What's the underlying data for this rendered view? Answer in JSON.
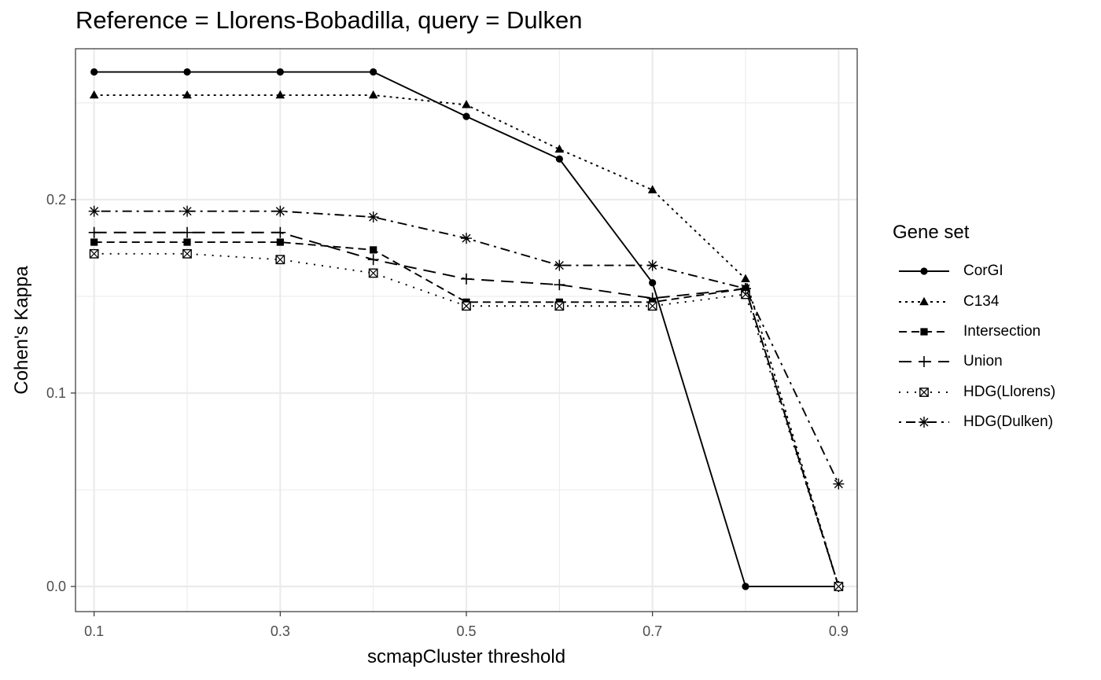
{
  "chart_data": {
    "type": "line",
    "title": "Reference = Llorens-Bobadilla, query = Dulken",
    "xlabel": "scmapCluster threshold",
    "ylabel": "Cohen's Kappa",
    "xlim": [
      0.08,
      0.92
    ],
    "ylim": [
      -0.013,
      0.278
    ],
    "x": [
      0.1,
      0.2,
      0.3,
      0.4,
      0.5,
      0.6,
      0.7,
      0.8,
      0.9
    ],
    "x_ticks": [
      0.1,
      0.3,
      0.5,
      0.7,
      0.9
    ],
    "x_tick_labels": [
      "0.1",
      "0.3",
      "0.5",
      "0.7",
      "0.9"
    ],
    "y_ticks": [
      0.0,
      0.1,
      0.2
    ],
    "y_tick_labels": [
      "0.0",
      "0.1",
      "0.2"
    ],
    "grid": true,
    "legend_title": "Gene set",
    "legend_position": "right",
    "series": [
      {
        "name": "CorGI",
        "linetype": "solid",
        "marker": "circle",
        "values": [
          0.266,
          0.266,
          0.266,
          0.266,
          0.243,
          0.221,
          0.157,
          0.0,
          0.0
        ]
      },
      {
        "name": "C134",
        "linetype": "dotted",
        "marker": "triangle",
        "values": [
          0.254,
          0.254,
          0.254,
          0.254,
          0.249,
          0.226,
          0.205,
          0.159,
          0.0
        ]
      },
      {
        "name": "Intersection",
        "linetype": "dashed",
        "marker": "square",
        "values": [
          0.178,
          0.178,
          0.178,
          0.174,
          0.147,
          0.147,
          0.147,
          0.154,
          0.0
        ]
      },
      {
        "name": "Union",
        "linetype": "longdash",
        "marker": "plus",
        "values": [
          0.183,
          0.183,
          0.183,
          0.169,
          0.159,
          0.156,
          0.149,
          0.154,
          0.0
        ]
      },
      {
        "name": "HDG(Llorens)",
        "linetype": "dotted-sparse",
        "marker": "square-cross",
        "values": [
          0.172,
          0.172,
          0.169,
          0.162,
          0.145,
          0.145,
          0.145,
          0.151,
          0.0
        ]
      },
      {
        "name": "HDG(Dulken)",
        "linetype": "dotdash",
        "marker": "asterisk",
        "values": [
          0.194,
          0.194,
          0.194,
          0.191,
          0.18,
          0.166,
          0.166,
          0.154,
          0.053
        ]
      }
    ]
  }
}
